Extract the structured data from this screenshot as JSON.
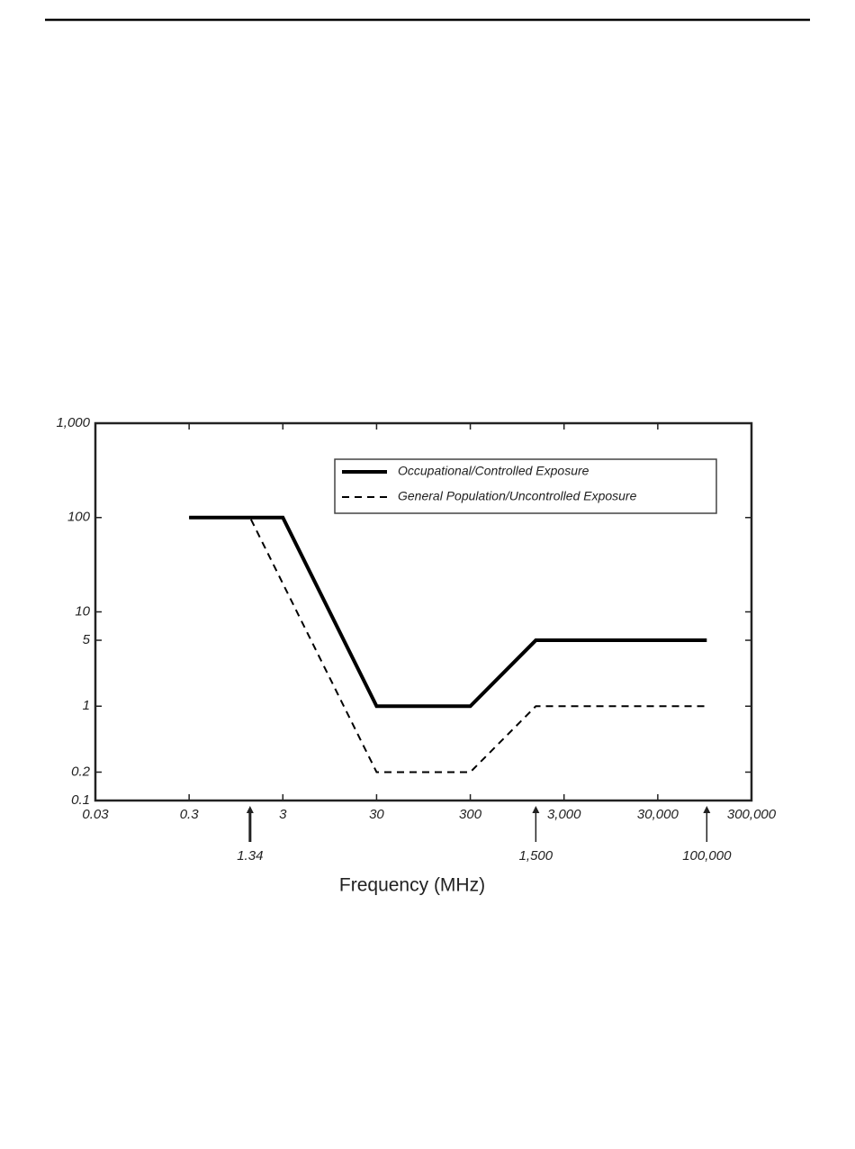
{
  "chart_data": {
    "type": "line",
    "x_label": "Frequency (MHz)",
    "xscale": "log",
    "yscale": "log",
    "xlim": [
      0.03,
      300000
    ],
    "xticks": [
      0.03,
      0.3,
      3,
      30,
      300,
      {
        "value": 3000,
        "label": "3,000"
      },
      {
        "value": 30000,
        "label": "30,000"
      },
      {
        "value": 300000,
        "label": "300,000"
      }
    ],
    "ylim": [
      0.1,
      1000
    ],
    "yticks": [
      0.1,
      0.2,
      1,
      5,
      10,
      100,
      {
        "value": 1000,
        "label": "1,000"
      }
    ],
    "annotations": [
      1.34,
      {
        "value": 1500,
        "label": "1,500"
      },
      {
        "value": 100000,
        "label": "100,000"
      }
    ],
    "legend": "upper right",
    "series": [
      {
        "name": "Occupational/Controlled Exposure",
        "color": "#000000",
        "line_style": "solid",
        "x": [
          0.3,
          3,
          30,
          300,
          1500,
          100000
        ],
        "values": [
          100,
          100,
          1,
          1,
          5,
          5
        ]
      },
      {
        "name": "General Population/Uncontrolled Exposure",
        "color": "#000000",
        "line_style": "dashed",
        "x": [
          0.3,
          1.34,
          30,
          300,
          1500,
          100000
        ],
        "values": [
          100,
          100,
          0.2,
          0.2,
          1,
          1
        ]
      }
    ]
  }
}
